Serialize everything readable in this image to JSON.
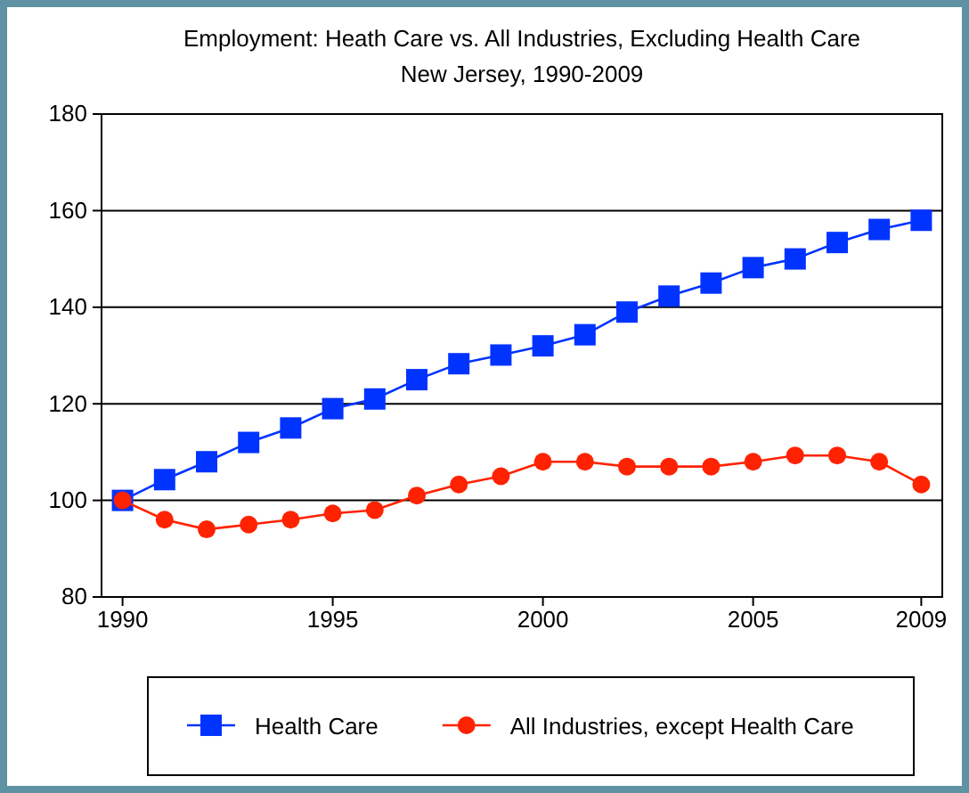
{
  "chart_data": {
    "type": "line",
    "title": "Employment: Heath Care vs. All Industries, Excluding Health Care",
    "subtitle": "New Jersey, 1990-2009",
    "x": [
      1990,
      1991,
      1992,
      1993,
      1994,
      1995,
      1996,
      1997,
      1998,
      1999,
      2000,
      2001,
      2002,
      2003,
      2004,
      2005,
      2006,
      2007,
      2008,
      2009
    ],
    "series": [
      {
        "name": "Health Care",
        "color": "#0033ff",
        "marker": "square",
        "values": [
          100,
          104.3,
          108,
          112,
          115,
          119,
          121,
          125,
          128.3,
          130.1,
          132,
          134.3,
          139,
          142.3,
          145,
          148.2,
          150,
          153.4,
          156.1,
          158
        ]
      },
      {
        "name": "All Industries, except Health Care",
        "color": "#ff2200",
        "marker": "circle",
        "values": [
          100,
          96,
          94,
          95,
          96,
          97.3,
          98,
          101,
          103.3,
          105,
          108,
          108,
          107,
          107,
          107,
          108,
          109.3,
          109.3,
          108,
          103.3
        ]
      }
    ],
    "xlim": [
      1989.5,
      2009.5
    ],
    "xticks": [
      1990,
      1995,
      2000,
      2005,
      2009
    ],
    "ylim": [
      80,
      180
    ],
    "yticks": [
      80,
      100,
      120,
      140,
      160,
      180
    ],
    "grid": "y",
    "legend": "bottom",
    "line_style": "solid"
  }
}
